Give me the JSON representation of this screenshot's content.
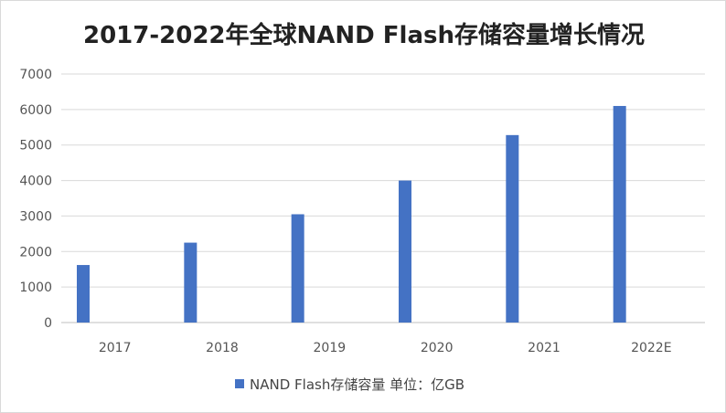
{
  "chart_data": {
    "type": "bar",
    "title": "2017-2022年全球NAND Flash存储容量增长情况",
    "categories": [
      "2017",
      "2018",
      "2019",
      "2020",
      "2021",
      "2022E"
    ],
    "series": [
      {
        "name": "NAND Flash存储容量 单位：亿GB",
        "values": [
          1620,
          2250,
          3050,
          4000,
          5280,
          6100
        ]
      }
    ],
    "yticks": [
      "0",
      "1000",
      "2000",
      "3000",
      "4000",
      "5000",
      "6000",
      "7000"
    ],
    "ylim": [
      0,
      7000
    ],
    "xlabel": "",
    "ylabel": "",
    "grid": true,
    "legend_position": "bottom",
    "bar_color": "#4472c4",
    "grid_color": "#d9d9d9",
    "axis_color": "#bfbfbf"
  }
}
